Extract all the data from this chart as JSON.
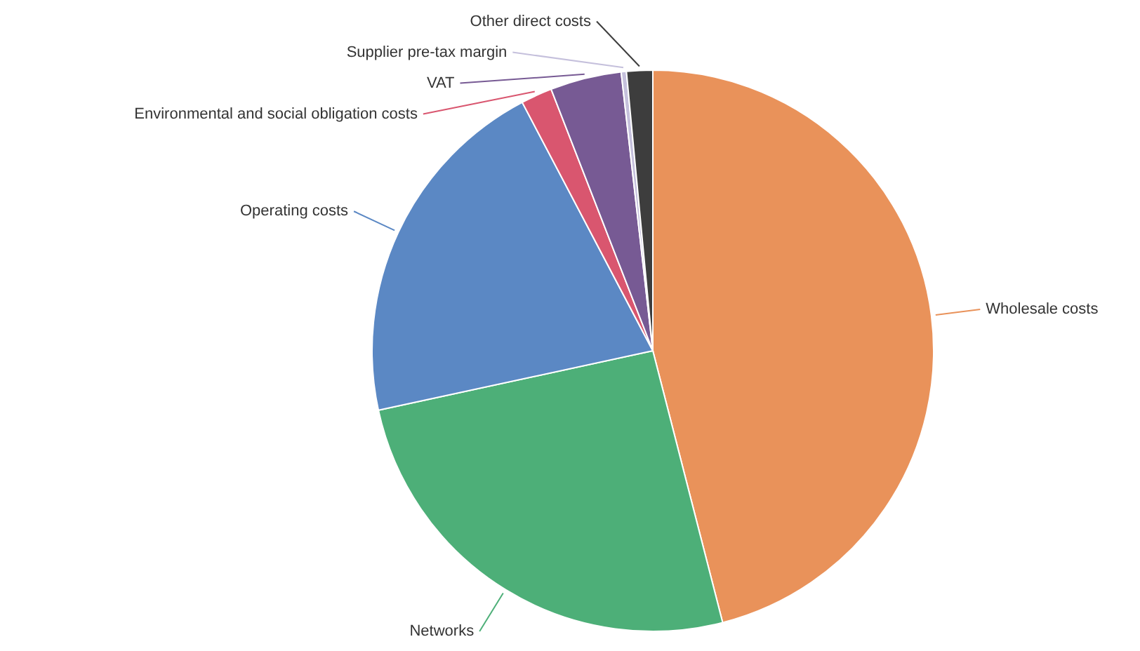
{
  "chart_data": {
    "type": "pie",
    "categories": [
      "Wholesale costs",
      "Networks",
      "Operating costs",
      "Environmental and social obligation costs",
      "VAT",
      "Supplier pre-tax margin",
      "Other direct costs"
    ],
    "values": [
      46.0,
      25.6,
      20.7,
      1.8,
      4.1,
      0.3,
      1.5
    ],
    "colors": [
      "#e9925a",
      "#4daf78",
      "#5b88c4",
      "#d9566f",
      "#775a94",
      "#c5c0dc",
      "#3d3d3d"
    ]
  }
}
